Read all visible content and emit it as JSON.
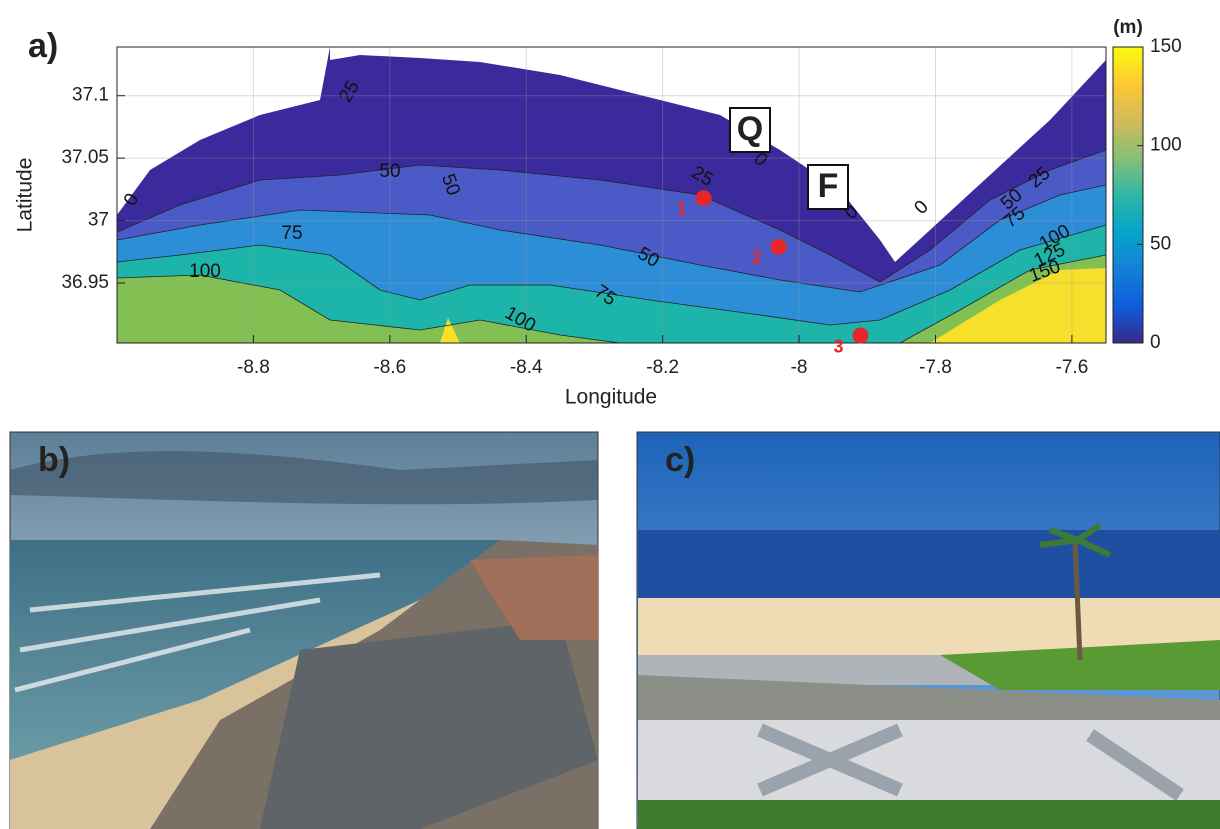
{
  "chart_data": {
    "type": "contour",
    "panel_label": "a)",
    "xlabel": "Longitude",
    "ylabel": "Latitude",
    "xlim": [
      -9.0,
      -7.55
    ],
    "ylim": [
      36.902,
      37.139
    ],
    "xticks": [
      -8.8,
      -8.6,
      -8.4,
      -8.2,
      -8,
      -7.8,
      -7.6
    ],
    "yticks": [
      36.95,
      37,
      37.05,
      37.1
    ],
    "grid": true,
    "contour_levels": [
      0,
      25,
      50,
      75,
      100,
      125,
      150
    ],
    "level_colors": [
      "#3b2a9b",
      "#4a5bc7",
      "#2d8ed8",
      "#1db4a9",
      "#82c053",
      "#f6e02b"
    ],
    "colorbar": {
      "title": "(m)",
      "lim": [
        0,
        150
      ],
      "ticks": [
        0,
        50,
        100,
        150
      ],
      "colormap": [
        "#352a87",
        "#0f5cdd",
        "#1481d6",
        "#06a4ca",
        "#2eb7a4",
        "#87bf77",
        "#d1bb59",
        "#fec832",
        "#f9fb0e"
      ]
    },
    "annotations": [
      "Q",
      "F"
    ],
    "points": {
      "x": [
        -8.14,
        -8.03,
        -7.91
      ],
      "y": [
        37.018,
        36.979,
        36.908
      ],
      "labels": [
        "1",
        "2",
        "3"
      ],
      "color": "#e8262a"
    }
  },
  "panels": [
    {
      "label": "b)"
    },
    {
      "label": "c)"
    }
  ]
}
